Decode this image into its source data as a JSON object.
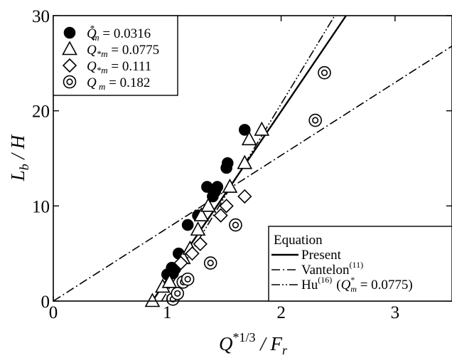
{
  "chart_data": {
    "type": "scatter",
    "xlabel": {
      "main": "Q",
      "sup": "*1/3",
      "mid": " / F",
      "sub": "r"
    },
    "ylabel": {
      "main": "L",
      "sub": "b",
      "rest": " / H"
    },
    "xlim": [
      0,
      3.5
    ],
    "ylim": [
      0,
      30
    ],
    "xticks": [
      0,
      1,
      2,
      3
    ],
    "yticks": [
      0,
      10,
      20,
      30
    ],
    "grid": false,
    "legend_position": "top-left",
    "series": [
      {
        "name": "Q*m = 0.0316",
        "label": {
          "sym": "Q",
          "sup": "*",
          "sub": "m",
          "value": " = 0.0316"
        },
        "marker": "filled-circle",
        "points": [
          [
            1.0,
            2.8
          ],
          [
            1.04,
            3.5
          ],
          [
            1.07,
            3.4
          ],
          [
            1.05,
            2.9
          ],
          [
            1.1,
            5.0
          ],
          [
            1.18,
            8.0
          ],
          [
            1.27,
            9.0
          ],
          [
            1.35,
            12.0
          ],
          [
            1.4,
            11.0
          ],
          [
            1.42,
            11.5
          ],
          [
            1.44,
            12.0
          ],
          [
            1.52,
            14.0
          ],
          [
            1.53,
            14.5
          ],
          [
            1.68,
            18.0
          ]
        ]
      },
      {
        "name": "Q*m = 0.0775",
        "label": {
          "sym": "Q",
          "sup": "",
          "sub": "*m",
          "value": " = 0.0775"
        },
        "marker": "open-triangle",
        "points": [
          [
            0.87,
            0.0
          ],
          [
            0.96,
            1.5
          ],
          [
            1.02,
            2.0
          ],
          [
            1.14,
            4.5
          ],
          [
            1.2,
            5.5
          ],
          [
            1.27,
            7.5
          ],
          [
            1.3,
            9.0
          ],
          [
            1.36,
            10.0
          ],
          [
            1.55,
            12.0
          ],
          [
            1.68,
            14.5
          ],
          [
            1.72,
            17.0
          ],
          [
            1.83,
            18.0
          ]
        ]
      },
      {
        "name": "Q*m = 0.111",
        "label": {
          "sym": "Q",
          "sup": "",
          "sub": "*m",
          "value": " = 0.111"
        },
        "marker": "open-diamond",
        "points": [
          [
            1.12,
            4.0
          ],
          [
            1.22,
            5.0
          ],
          [
            1.29,
            6.0
          ],
          [
            1.47,
            9.0
          ],
          [
            1.52,
            10.0
          ],
          [
            1.68,
            11.0
          ]
        ]
      },
      {
        "name": "Q*m = 0.182",
        "label": {
          "sym": "Q",
          "sup": "",
          "sub": " m",
          "value": " = 0.182"
        },
        "marker": "open-double-circle",
        "points": [
          [
            1.05,
            0.2
          ],
          [
            1.09,
            0.8
          ],
          [
            1.14,
            2.0
          ],
          [
            1.18,
            2.3
          ],
          [
            1.38,
            4.0
          ],
          [
            1.6,
            8.0
          ],
          [
            2.3,
            19.0
          ],
          [
            2.38,
            24.0
          ]
        ]
      }
    ],
    "lines": [
      {
        "name": "Present",
        "style": "solid",
        "x": [
          0.87,
          2.57
        ],
        "y": [
          0.0,
          30.0
        ]
      },
      {
        "name": "Vantelon(11)",
        "style": "dash-dot",
        "x": [
          0.0,
          3.5
        ],
        "y": [
          0.0,
          26.8
        ]
      },
      {
        "name": "Hu(16) (Q*m = 0.0775)",
        "style": "dash-dot-dot",
        "x": [
          0.95,
          2.47
        ],
        "y": [
          0.0,
          30.0
        ]
      }
    ],
    "equation_legend": {
      "title": "Equation",
      "entries": [
        {
          "style": "solid",
          "text": "Present"
        },
        {
          "style": "dash-dot",
          "text": "Vantelon",
          "sup": "(11)"
        },
        {
          "style": "dash-dot-dot",
          "text": "Hu",
          "sup": "(16)",
          "paren": {
            "sym": "Q",
            "sup": "*",
            "sub": "m",
            "value": " = 0.0775)"
          }
        }
      ]
    }
  }
}
